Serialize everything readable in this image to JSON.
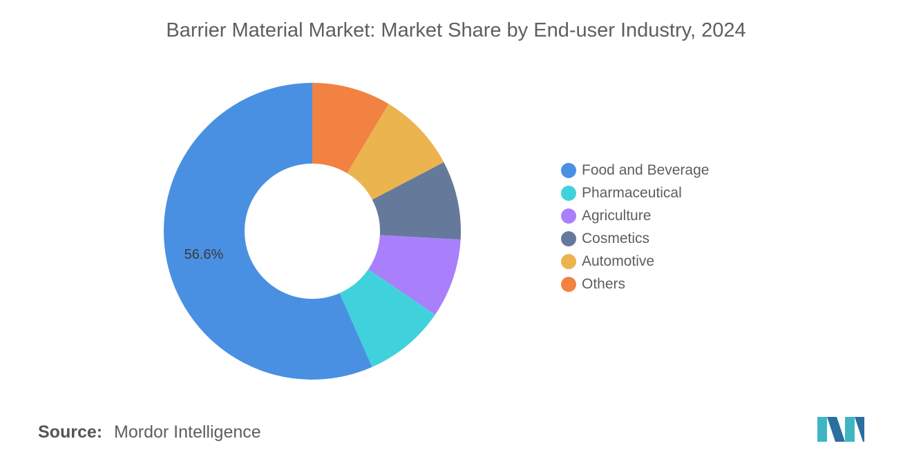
{
  "title": "Barrier Material Market: Market Share by End-user Industry, 2024",
  "source": {
    "label": "Source:",
    "name": "Mordor Intelligence"
  },
  "chart_data": {
    "type": "pie",
    "donut": true,
    "title": "Barrier Material Market: Market Share by End-user Industry, 2024",
    "legend_position": "right",
    "categories": [
      "Food and Beverage",
      "Pharmaceutical",
      "Agriculture",
      "Cosmetics",
      "Automotive",
      "Others"
    ],
    "values": [
      56.6,
      8.9,
      8.6,
      8.6,
      8.7,
      8.6
    ],
    "colors": [
      "#4a90e2",
      "#40d2dc",
      "#a97ffc",
      "#65799b",
      "#ebb44f",
      "#f28242"
    ],
    "data_labels": [
      {
        "category": "Food and Beverage",
        "text": "56.6%"
      }
    ]
  }
}
